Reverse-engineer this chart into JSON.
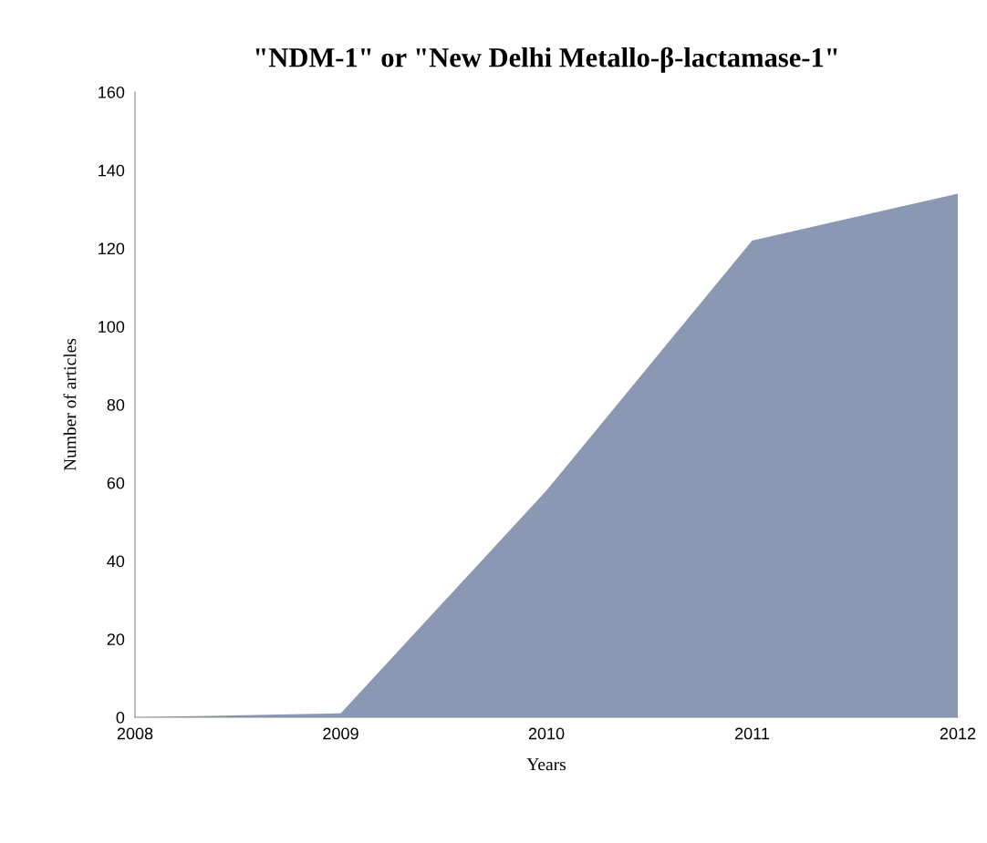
{
  "chart_data": {
    "type": "area",
    "title": "\"NDM-1\" or \"New Delhi Metallo-β-lactamase-1\"",
    "xlabel": "Years",
    "ylabel": "Number of articles",
    "x": [
      2008,
      2009,
      2010,
      2011,
      2012
    ],
    "series": [
      {
        "color": "#8a98b4",
        "values": [
          0,
          1,
          58,
          122,
          134
        ]
      }
    ],
    "xlim": [
      2008,
      2012
    ],
    "xticks": [
      2008,
      2009,
      2010,
      2011,
      2012
    ],
    "ylim": [
      0,
      160
    ],
    "yticks": [
      0,
      20,
      40,
      60,
      80,
      100,
      120,
      140,
      160
    ],
    "grid": false
  }
}
